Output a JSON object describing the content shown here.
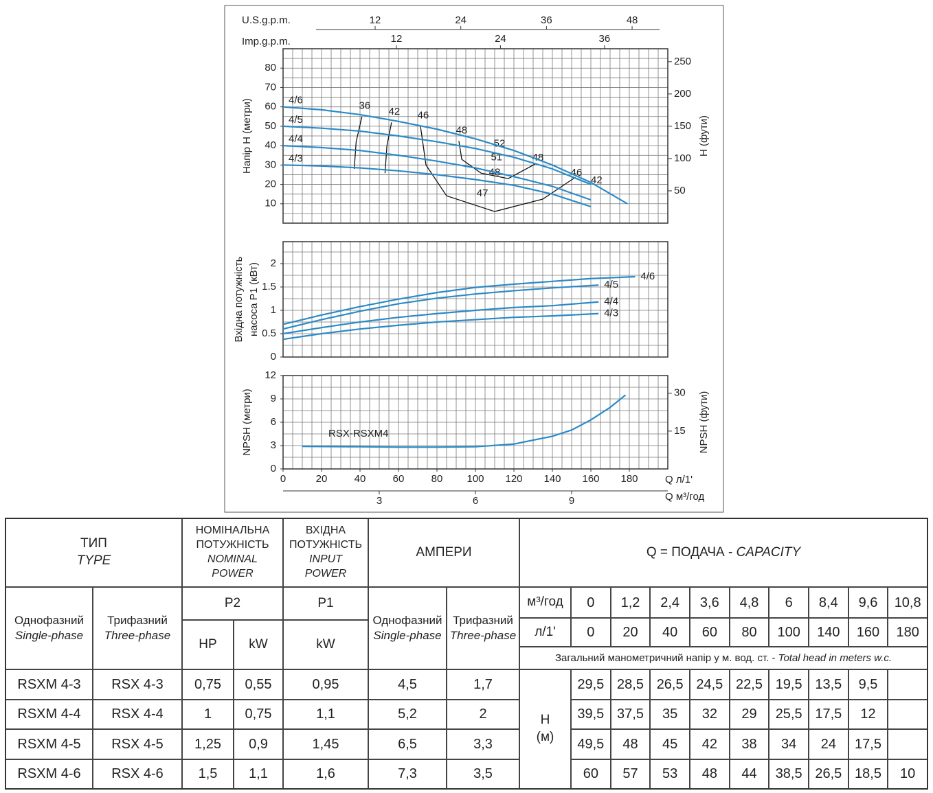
{
  "chart_data": [
    {
      "type": "line",
      "ylabel": "Напір H (метри)",
      "y2label": "H (фути)",
      "xlim": [
        0,
        200
      ],
      "ylim": [
        0,
        90
      ],
      "yticks": [
        10,
        20,
        30,
        40,
        50,
        60,
        70,
        80
      ],
      "y2lim": [
        0,
        270
      ],
      "y2ticks": [
        50,
        100,
        150,
        200,
        250
      ],
      "grid": {
        "x": 5,
        "y": 5
      },
      "top_axes": [
        {
          "label": "U.S.g.p.m.",
          "lim": [
            -0.9,
            53
          ],
          "ticks": [
            12,
            24,
            36,
            48
          ]
        },
        {
          "label": "Imp.g.p.m.",
          "lim": [
            -1.07,
            43.3
          ],
          "ticks": [
            12,
            24,
            36
          ]
        }
      ],
      "series": [
        {
          "name": "4/6",
          "color": "#2a8ac8",
          "x": [
            0,
            20,
            40,
            60,
            80,
            100,
            120,
            140,
            160,
            179
          ],
          "values": [
            60,
            58.5,
            56,
            52.5,
            48.5,
            43.5,
            37.5,
            30,
            21,
            10
          ]
        },
        {
          "name": "4/5",
          "color": "#2a8ac8",
          "x": [
            0,
            20,
            40,
            60,
            80,
            100,
            120,
            140,
            160
          ],
          "values": [
            50,
            49,
            47.5,
            45,
            42,
            38.5,
            34,
            28,
            20
          ]
        },
        {
          "name": "4/4",
          "color": "#2a8ac8",
          "x": [
            0,
            20,
            40,
            60,
            80,
            100,
            120,
            140,
            160
          ],
          "values": [
            40,
            39,
            37.5,
            35,
            32,
            28.5,
            24,
            19,
            12
          ]
        },
        {
          "name": "4/3",
          "color": "#2a8ac8",
          "x": [
            0,
            20,
            40,
            60,
            80,
            100,
            120,
            140,
            160
          ],
          "values": [
            30,
            29.5,
            28.5,
            27,
            25,
            22.5,
            19.5,
            15,
            8.5
          ]
        }
      ],
      "efficiency_curves": [
        {
          "label": "36",
          "x": [
            41,
            38,
            37
          ],
          "y": [
            55,
            42,
            28
          ]
        },
        {
          "label": "42",
          "x": [
            56.4,
            54,
            53
          ],
          "y": [
            52,
            40,
            25.8
          ]
        },
        {
          "label": "46",
          "x": [
            71.4,
            74.3,
            85,
            110,
            135,
            152
          ],
          "y": [
            50.2,
            30,
            14.1,
            6,
            12.4,
            23.7
          ]
        },
        {
          "label": "48",
          "x": [
            91.4,
            92.9,
            102.9,
            117.1,
            131.4
          ],
          "y": [
            42.4,
            32.9,
            25.8,
            23,
            30.7
          ]
        }
      ],
      "efficiency_labels": [
        {
          "label": "52",
          "x": 112.5,
          "y": 41
        },
        {
          "label": "51",
          "x": 111,
          "y": 33.9
        },
        {
          "label": "48",
          "x": 110,
          "y": 26
        },
        {
          "label": "47",
          "x": 103.6,
          "y": 15.2
        },
        {
          "label": "48",
          "x": 132.5,
          "y": 33.6
        },
        {
          "label": "46",
          "x": 152.5,
          "y": 25.8
        },
        {
          "label": "42",
          "x": 163,
          "y": 21.9
        }
      ]
    },
    {
      "type": "line",
      "ylabel": [
        "Вхідна потужність",
        "насоса P1 (кВт)"
      ],
      "xlim": [
        0,
        200
      ],
      "ylim": [
        0,
        2.47
      ],
      "yticks": [
        0,
        0.5,
        1,
        1.5,
        2
      ],
      "grid": {
        "x": 5,
        "y": 0.25
      },
      "series": [
        {
          "name": "4/6",
          "color": "#2a8ac8",
          "x": [
            0,
            20,
            40,
            60,
            80,
            100,
            120,
            140,
            160,
            183
          ],
          "values": [
            0.7,
            0.9,
            1.08,
            1.24,
            1.38,
            1.49,
            1.56,
            1.62,
            1.68,
            1.72
          ]
        },
        {
          "name": "4/5",
          "color": "#2a8ac8",
          "x": [
            0,
            20,
            40,
            60,
            80,
            100,
            120,
            140,
            164
          ],
          "values": [
            0.6,
            0.8,
            0.98,
            1.14,
            1.26,
            1.35,
            1.42,
            1.48,
            1.54
          ]
        },
        {
          "name": "4/4",
          "color": "#2a8ac8",
          "x": [
            0,
            20,
            40,
            60,
            80,
            100,
            120,
            140,
            164
          ],
          "values": [
            0.5,
            0.63,
            0.75,
            0.85,
            0.93,
            1,
            1.06,
            1.1,
            1.18
          ]
        },
        {
          "name": "4/3",
          "color": "#2a8ac8",
          "x": [
            0,
            20,
            40,
            60,
            80,
            100,
            120,
            140,
            164
          ],
          "values": [
            0.38,
            0.5,
            0.6,
            0.68,
            0.75,
            0.8,
            0.85,
            0.88,
            0.93
          ]
        }
      ]
    },
    {
      "type": "line",
      "ylabel": "NPSH (метри)",
      "y2label": "NPSH (фути)",
      "xlabel": "Q л/1'",
      "xlim": [
        0,
        200
      ],
      "ylim": [
        0,
        12
      ],
      "yticks": [
        0,
        3,
        6,
        9,
        12
      ],
      "y2lim": [
        0,
        37
      ],
      "y2ticks": [
        15,
        30
      ],
      "xticks": [
        0,
        20,
        40,
        60,
        80,
        100,
        120,
        140,
        160,
        180
      ],
      "grid": {
        "x": 5,
        "y": 1.5
      },
      "bottom_axis": {
        "label": "Q м³/год",
        "lim": [
          0,
          12
        ],
        "ticks": [
          3,
          6,
          9
        ]
      },
      "series": [
        {
          "name": "RSX-RSXM4",
          "color": "#2a8ac8",
          "x": [
            10,
            40,
            60,
            80,
            100,
            120,
            140,
            150,
            160,
            170,
            178
          ],
          "values": [
            2.9,
            2.85,
            2.8,
            2.8,
            2.85,
            3.2,
            4.2,
            5,
            6.3,
            7.9,
            9.5
          ]
        }
      ]
    }
  ],
  "table": {
    "header": {
      "type": "ТИП",
      "type_en": "TYPE",
      "nominal": [
        "НОМІНАЛЬНА",
        "ПОТУЖНІСТЬ"
      ],
      "nominal_en": [
        "NOMINAL",
        "POWER"
      ],
      "input": [
        "ВХІДНА",
        "ПОТУЖНІСТЬ"
      ],
      "input_en": [
        "INPUT",
        "POWER"
      ],
      "amps": "АМПЕРИ",
      "capacity": "Q = ПОДАЧА - ",
      "capacity_en": "CAPACITY",
      "single": "Однофазний",
      "single_en": "Single-phase",
      "three": "Трифазний",
      "three_en": "Three-phase",
      "p2": "P2",
      "p1": "P1",
      "hp": "HP",
      "kw": "kW",
      "kw_in": "kW",
      "amps_single": "Однофазний",
      "amps_single_en": "Single-phase",
      "amps_three": "Трифазний",
      "amps_three_en": "Three-phase",
      "m3h": "м³/год",
      "lmin": "л/1'",
      "q_m3h": [
        "0",
        "1,2",
        "2,4",
        "3,6",
        "4,8",
        "6",
        "8,4",
        "9,6",
        "10,8"
      ],
      "q_lmin": [
        "0",
        "20",
        "40",
        "60",
        "80",
        "100",
        "140",
        "160",
        "180"
      ],
      "head_note": "Загальний манометричний напір у м. вод. ст. - ",
      "head_note_en": "Total head in meters w.c.",
      "h_unit": "H",
      "h_unit2": "(м)"
    },
    "rows": [
      {
        "model": [
          "RSXM 4-3",
          "RSX 4-3",
          "0,75",
          "0,55",
          "0,95",
          "4,5",
          "1,7"
        ],
        "heads": [
          "29,5",
          "28,5",
          "26,5",
          "24,5",
          "22,5",
          "19,5",
          "13,5",
          "9,5"
        ]
      },
      {
        "model": [
          "RSXM 4-4",
          "RSX 4-4",
          "1",
          "0,75",
          "1,1",
          "5,2",
          "2"
        ],
        "heads": [
          "39,5",
          "37,5",
          "35",
          "32",
          "29",
          "25,5",
          "17,5",
          "12"
        ]
      },
      {
        "model": [
          "RSXM 4-5",
          "RSX 4-5",
          "1,25",
          "0,9",
          "1,45",
          "6,5",
          "3,3"
        ],
        "heads": [
          "49,5",
          "48",
          "45",
          "42",
          "38",
          "34",
          "24",
          "17,5"
        ]
      },
      {
        "model": [
          "RSXM 4-6",
          "RSX 4-6",
          "1,5",
          "1,1",
          "1,6",
          "7,3",
          "3,5"
        ],
        "heads": [
          "60",
          "57",
          "53",
          "48",
          "44",
          "38,5",
          "26,5",
          "18,5",
          "10"
        ]
      }
    ]
  }
}
